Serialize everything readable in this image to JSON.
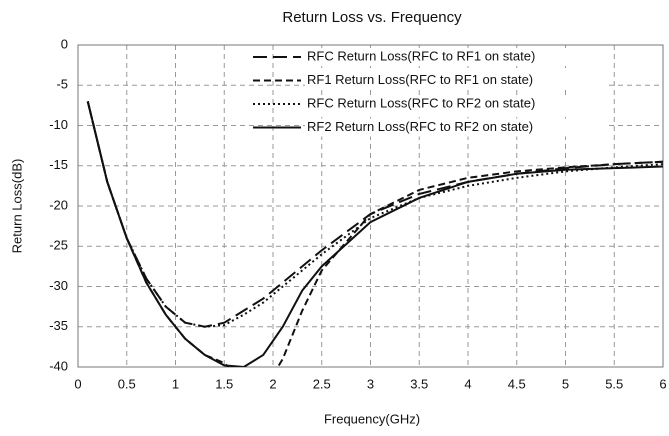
{
  "chart_data": {
    "type": "line",
    "title": "Return Loss vs. Frequency",
    "xlabel": "Frequency(GHz)",
    "ylabel": "Return Loss(dB)",
    "x": [
      0.1,
      0.3,
      0.5,
      0.7,
      0.9,
      1.1,
      1.3,
      1.5,
      1.7,
      1.9,
      2.1,
      2.3,
      2.5,
      3,
      3.5,
      4,
      4.5,
      5,
      5.5,
      6
    ],
    "series": [
      {
        "name": "RFC Return Loss(RFC to RF1 on state)",
        "color": "#111111",
        "dash": "14,6",
        "values": [
          -7,
          -17,
          -24,
          -29,
          -32.5,
          -34.5,
          -35,
          -34.5,
          -33,
          -31.5,
          -29.5,
          -27.5,
          -25.5,
          -21,
          -18.5,
          -17,
          -16,
          -15.3,
          -14.8,
          -14.5
        ]
      },
      {
        "name": "RF1 Return Loss(RFC to RF1 on state)",
        "color": "#111111",
        "dash": "7,4",
        "values": [
          -7,
          -17,
          -24,
          -29.5,
          -33.5,
          -36.5,
          -38.5,
          -39.5,
          -42,
          -43,
          -39,
          -33,
          -28,
          -21,
          -18,
          -16.5,
          -15.7,
          -15.2,
          -14.8,
          -14.5
        ]
      },
      {
        "name": "RFC Return Loss(RFC to RF2 on state)",
        "color": "#111111",
        "dash": "2,3",
        "values": [
          -7,
          -17,
          -24,
          -29,
          -32.5,
          -34.5,
          -35,
          -34.8,
          -33.5,
          -32,
          -30,
          -28,
          -26,
          -21.5,
          -19,
          -17.5,
          -16.5,
          -15.7,
          -15.2,
          -14.8
        ]
      },
      {
        "name": "RF2 Return Loss(RFC to RF2 on state)",
        "color": "#111111",
        "dash": "none",
        "values": [
          -7,
          -17,
          -24,
          -29.5,
          -33.5,
          -36.5,
          -38.5,
          -39.8,
          -40,
          -38.5,
          -35,
          -30.5,
          -27.5,
          -22,
          -19,
          -17,
          -16,
          -15.5,
          -15.3,
          -15.1
        ]
      }
    ],
    "xlim": [
      0,
      6
    ],
    "ylim": [
      -40,
      0
    ],
    "xticks": [
      0,
      0.5,
      1,
      1.5,
      2,
      2.5,
      3,
      3.5,
      4,
      4.5,
      5,
      5.5,
      6
    ],
    "yticks": [
      0,
      -5,
      -10,
      -15,
      -20,
      -25,
      -30,
      -35,
      -40
    ],
    "grid": true,
    "legend": "top-right"
  }
}
